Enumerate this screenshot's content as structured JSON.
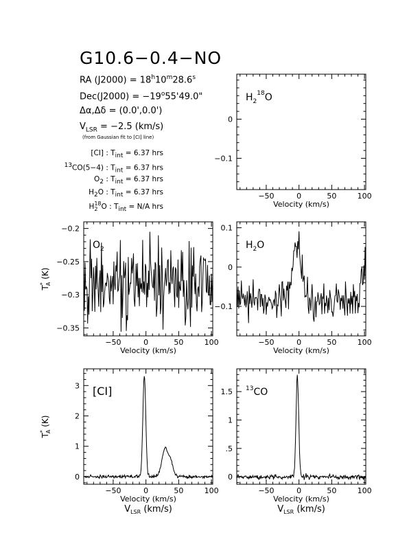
{
  "header": {
    "title": "G10.6−0.4−NO",
    "ra": {
      "label": "RA (J2000) =",
      "h": "18",
      "h_unit": "h",
      "m": "10",
      "m_unit": "m",
      "s": "28.6",
      "s_unit": "s"
    },
    "dec": {
      "label": "Dec(J2000) =",
      "deg": "−19",
      "deg_unit": "o",
      "rest": "55'49.0\""
    },
    "offset": {
      "label": "Δα,Δδ =",
      "value": "(0.0',0.0')"
    },
    "vlsr": {
      "label": "V",
      "sub": "LSR",
      "value": "= −2.5 (km/s)",
      "note": "(from Gaussian fit to [CI] line)"
    },
    "integration_times": [
      {
        "line_pre": "",
        "line": "[CI]",
        "sup": "",
        "sub": "",
        "rest": "",
        "value": "6.37 hrs"
      },
      {
        "line_pre": "13",
        "line": "CO(5−4)",
        "sup": "",
        "sub": "",
        "rest": "",
        "value": "6.37 hrs"
      },
      {
        "line_pre": "",
        "line": "O",
        "sup": "",
        "sub": "2",
        "rest": "",
        "value": "6.37 hrs"
      },
      {
        "line_pre": "",
        "line": "H",
        "sup": "",
        "sub": "2",
        "rest": "O",
        "value": "6.37 hrs"
      },
      {
        "line_pre": "",
        "line": "H",
        "sup": "18",
        "sub": "2",
        "rest": "O",
        "value": "N/A hrs"
      }
    ],
    "tint_label": "T",
    "tint_sub": "int"
  },
  "axis_common": {
    "xlabel": "Velocity (km/s)",
    "vlsr_label": "V",
    "vlsr_sub": "LSR",
    "vlsr_unit": "(km/s)",
    "ylabel_T": "T",
    "ylabel_sub": "A",
    "ylabel_sup": "*",
    "ylabel_unit": "(K)"
  },
  "chart_data": [
    {
      "id": "h218o",
      "type": "line",
      "label_main": "H",
      "label_sub": "2",
      "label_sup": "18",
      "label_rest": "O",
      "xlim": [
        -95,
        102
      ],
      "ylim": [
        -0.18,
        0.115
      ],
      "xticks": [
        -50,
        0,
        50,
        100
      ],
      "yticks": [
        -0.1,
        0
      ],
      "ytick_labels": [
        "−0.1",
        "0"
      ],
      "xlabel_shown": true,
      "vlsr_shown": false,
      "ylabel_shown": false,
      "series": []
    },
    {
      "id": "o2",
      "type": "line",
      "label_main": "O",
      "label_sub": "2",
      "label_sup": "",
      "label_rest": "",
      "xlim": [
        -95,
        102
      ],
      "ylim": [
        -0.362,
        -0.19
      ],
      "xticks": [
        -50,
        0,
        50,
        100
      ],
      "yticks": [
        -0.35,
        -0.3,
        -0.25,
        -0.2
      ],
      "ytick_labels": [
        "−0.35",
        "−0.3",
        "−0.25",
        "−0.2"
      ],
      "xlabel_shown": true,
      "vlsr_shown": false,
      "ylabel_shown": true,
      "series": [
        {
          "kind": "noise",
          "seed": 7,
          "mean": -0.28,
          "sigma": 0.028,
          "step": 1.0,
          "lines": []
        }
      ]
    },
    {
      "id": "h2o",
      "type": "line",
      "label_main": "H",
      "label_sub": "2",
      "label_sup": "",
      "label_rest": "O",
      "xlim": [
        -95,
        102
      ],
      "ylim": [
        -0.175,
        0.115
      ],
      "xticks": [
        -50,
        0,
        50,
        100
      ],
      "yticks": [
        -0.1,
        0,
        0.1
      ],
      "ytick_labels": [
        "−0.1",
        "0",
        "0.1"
      ],
      "xlabel_shown": true,
      "vlsr_shown": false,
      "ylabel_shown": false,
      "series": [
        {
          "kind": "noise",
          "seed": 3,
          "mean": -0.085,
          "sigma": 0.022,
          "step": 1.0,
          "lines": [
            {
              "center": -3,
              "amp": 0.14,
              "width": 7
            },
            {
              "center": 98,
              "amp": 0.07,
              "width": 4
            }
          ]
        }
      ]
    },
    {
      "id": "ci",
      "type": "line",
      "label_main": "[CI]",
      "label_sub": "",
      "label_sup": "",
      "label_rest": "",
      "xlim": [
        -95,
        102
      ],
      "ylim": [
        -0.25,
        3.55
      ],
      "xticks": [
        -50,
        0,
        50,
        100
      ],
      "yticks": [
        0,
        1,
        2,
        3
      ],
      "ytick_labels": [
        "0",
        "1",
        "2",
        "3"
      ],
      "xlabel_shown": true,
      "vlsr_shown": true,
      "ylabel_shown": true,
      "series": [
        {
          "kind": "noise",
          "seed": 11,
          "mean": 0.0,
          "sigma": 0.025,
          "step": 0.7,
          "lines": [
            {
              "center": -2.5,
              "amp": 3.35,
              "width": 2.2
            },
            {
              "center": 29,
              "amp": 0.95,
              "width": 4.5
            },
            {
              "center": 38,
              "amp": 0.45,
              "width": 3.5
            }
          ]
        }
      ]
    },
    {
      "id": "13co",
      "type": "line",
      "label_main": "CO",
      "label_sub": "",
      "label_sup": "13",
      "label_rest": "",
      "xlim": [
        -95,
        102
      ],
      "ylim": [
        -0.13,
        1.9
      ],
      "xticks": [
        -50,
        0,
        50,
        100
      ],
      "yticks": [
        0,
        0.5,
        1,
        1.5
      ],
      "ytick_labels": [
        "0",
        ".5",
        "1",
        "1.5"
      ],
      "xlabel_shown": true,
      "vlsr_shown": true,
      "ylabel_shown": false,
      "series": [
        {
          "kind": "noise",
          "seed": 5,
          "mean": 0.0,
          "sigma": 0.02,
          "step": 0.7,
          "lines": [
            {
              "center": -2.5,
              "amp": 1.8,
              "width": 2.0
            }
          ]
        }
      ]
    }
  ]
}
